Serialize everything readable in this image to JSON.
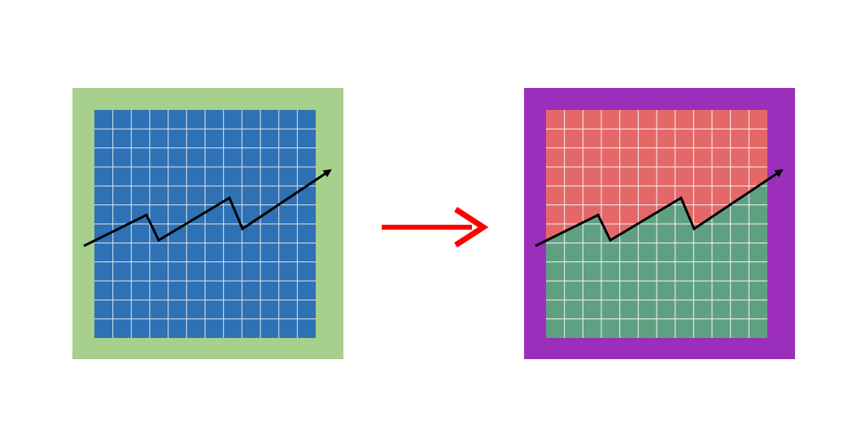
{
  "diagram": {
    "panels": [
      {
        "id": "before",
        "frame_color": "#a6d08c",
        "grid_fill_above": "#2e71b4",
        "grid_fill_below": "#2e71b4",
        "grid_line_color": "#e0e6ee",
        "trend_color": "#000000"
      },
      {
        "id": "after",
        "frame_color": "#9b2fbb",
        "grid_fill_above": "#e46868",
        "grid_fill_below": "#5fa083",
        "grid_line_color": "#f4f4f4",
        "trend_color": "#000000"
      }
    ],
    "arrow": {
      "color": "#ff0000",
      "direction": "right"
    },
    "grid": {
      "columns": 12,
      "rows": 12
    }
  }
}
